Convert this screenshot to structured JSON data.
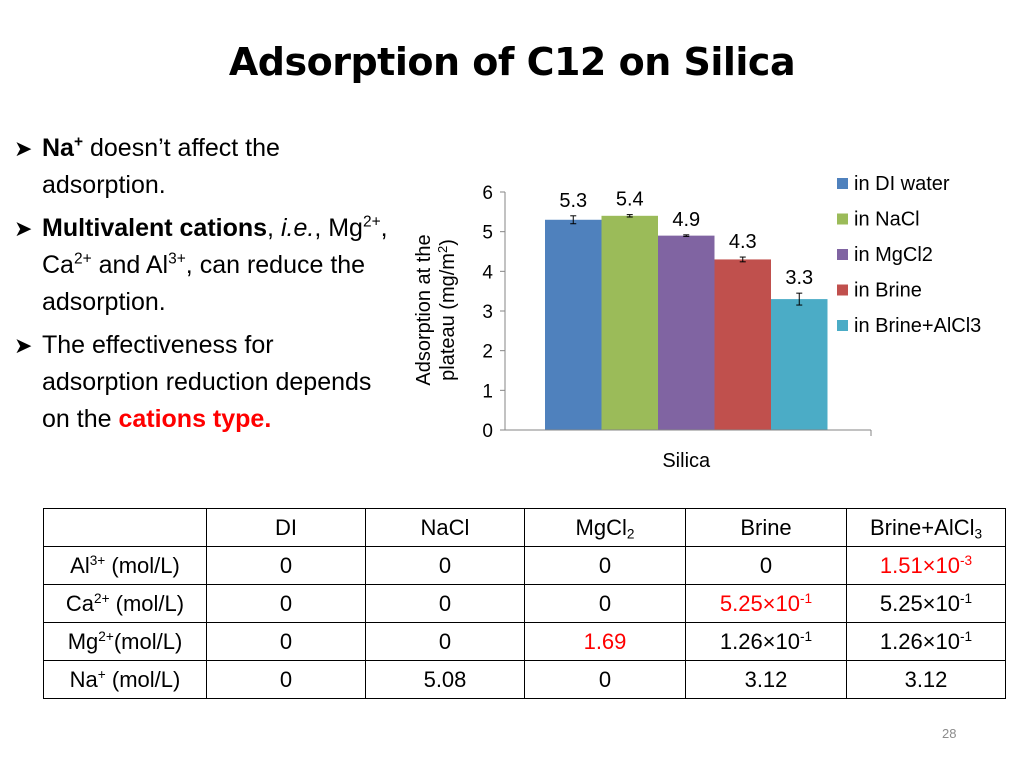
{
  "slide": {
    "title": "Adsorption of C12 on Silica",
    "page_number": "28"
  },
  "bullets": {
    "b1": {
      "ion": "Na",
      "ion_charge": "+",
      "rest": " doesn’t affect the adsorption."
    },
    "b2": {
      "bold": "Multivalent cations",
      "comma": ", ",
      "ie": "i.e.",
      "ie_comma": ",",
      "mg": " Mg",
      "mg_charge": "2+",
      "ca": ", Ca",
      "ca_charge": "2+",
      "al": " and Al",
      "al_charge": "3+",
      "rest": ", can reduce the adsorption."
    },
    "b3": {
      "text": "The effectiveness for adsorption reduction depends on the ",
      "highlight": "cations type."
    }
  },
  "chart_data": {
    "type": "bar",
    "categories": [
      "Silica"
    ],
    "series": [
      {
        "name": "in DI water",
        "values": [
          5.3
        ],
        "error": [
          0.1
        ],
        "color": "#4f81bd"
      },
      {
        "name": "in NaCl",
        "values": [
          5.4
        ],
        "error": [
          0.03
        ],
        "color": "#9bbb59"
      },
      {
        "name": "in MgCl2",
        "values": [
          4.9
        ],
        "error": [
          0.02
        ],
        "color": "#8064a2"
      },
      {
        "name": "in Brine",
        "values": [
          4.3
        ],
        "error": [
          0.06
        ],
        "color": "#c0504d"
      },
      {
        "name": "in Brine+AlCl3",
        "values": [
          3.3
        ],
        "error": [
          0.15
        ],
        "color": "#4bacc6"
      }
    ],
    "data_labels": [
      "5.3",
      "5.4",
      "4.9",
      "4.3",
      "3.3"
    ],
    "ylabel_line1": "Adsorption at the",
    "ylabel_line2": "plateau (mg/m",
    "ylabel_sup": "2",
    "ylabel_close": ")",
    "ylim": [
      0,
      6
    ],
    "yticks": [
      "0",
      "1",
      "2",
      "3",
      "4",
      "5",
      "6"
    ],
    "legend_position": "right",
    "grid": false
  },
  "table": {
    "headers": [
      "DI",
      "NaCl",
      "MgCl",
      "Brine",
      "Brine+AlCl"
    ],
    "header_subs": {
      "mgcl": "2",
      "alcl": "3"
    },
    "rows": [
      {
        "ion": "Al",
        "charge": "3+",
        "unit": " (mol/L)",
        "cells": [
          {
            "v": "0"
          },
          {
            "v": "0"
          },
          {
            "v": "0"
          },
          {
            "v": "0"
          },
          {
            "v": "1.51×10",
            "e": "-3",
            "red": true
          }
        ]
      },
      {
        "ion": "Ca",
        "charge": "2+",
        "unit": " (mol/L)",
        "cells": [
          {
            "v": "0"
          },
          {
            "v": "0"
          },
          {
            "v": "0"
          },
          {
            "v": "5.25×10",
            "e": "-1",
            "red": true
          },
          {
            "v": "5.25×10",
            "e": "-1"
          }
        ]
      },
      {
        "ion": "Mg",
        "charge": "2+",
        "unit": "(mol/L)",
        "cells": [
          {
            "v": "0"
          },
          {
            "v": "0"
          },
          {
            "v": "1.69",
            "red": true
          },
          {
            "v": "1.26×10",
            "e": "-1"
          },
          {
            "v": "1.26×10",
            "e": "-1"
          }
        ]
      },
      {
        "ion": "Na",
        "charge": "+",
        "unit": " (mol/L)",
        "cells": [
          {
            "v": "0"
          },
          {
            "v": "5.08"
          },
          {
            "v": "0"
          },
          {
            "v": "3.12"
          },
          {
            "v": "3.12"
          }
        ]
      }
    ]
  }
}
